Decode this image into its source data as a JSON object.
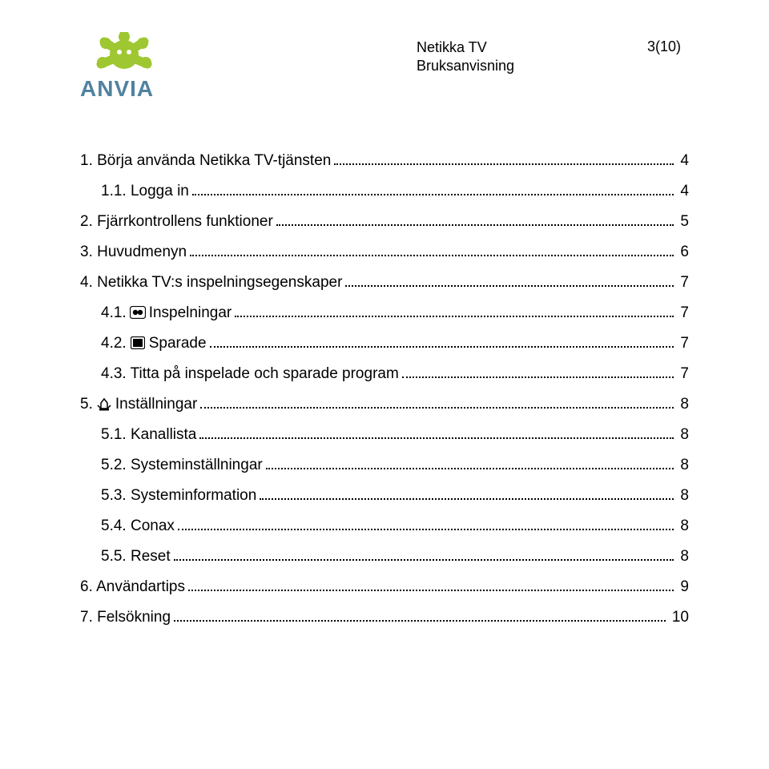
{
  "header": {
    "title1": "Netikka TV",
    "title2": "Bruksanvisning",
    "pageinfo": "3(10)"
  },
  "logo": {
    "brand": "ANVIA",
    "splat_color": "#9ec731",
    "text_color": "#5082a0"
  },
  "toc": {
    "entries": [
      {
        "level": 0,
        "label": "1. Börja använda Netikka TV-tjänsten",
        "page": "4",
        "icon": null
      },
      {
        "level": 1,
        "label": "1.1. Logga in",
        "page": "4",
        "icon": null
      },
      {
        "level": 0,
        "label": "2. Fjärrkontrollens funktioner",
        "page": "5",
        "icon": null
      },
      {
        "level": 0,
        "label": "3. Huvudmenyn",
        "page": "6",
        "icon": null
      },
      {
        "level": 0,
        "label": "4. Netikka TV:s inspelningsegenskaper",
        "page": "7",
        "icon": null
      },
      {
        "level": 1,
        "label_pre": "4.1. ",
        "label_post": " Inspelningar",
        "page": "7",
        "icon": "record"
      },
      {
        "level": 1,
        "label_pre": "4.2. ",
        "label_post": " Sparade",
        "page": "7",
        "icon": "saved"
      },
      {
        "level": 1,
        "label": "4.3. Titta på inspelade och sparade program",
        "page": "7",
        "icon": null
      },
      {
        "level": 0,
        "label_pre": "5. ",
        "label_post": " Inställningar",
        "page": "8",
        "icon": "settings"
      },
      {
        "level": 1,
        "label": "5.1. Kanallista",
        "page": "8",
        "icon": null
      },
      {
        "level": 1,
        "label": "5.2. Systeminställningar",
        "page": "8",
        "icon": null
      },
      {
        "level": 1,
        "label": "5.3. Systeminformation",
        "page": "8",
        "icon": null
      },
      {
        "level": 1,
        "label": "5.4. Conax",
        "page": "8",
        "icon": null
      },
      {
        "level": 1,
        "label": "5.5. Reset",
        "page": "8",
        "icon": null
      },
      {
        "level": 0,
        "label": "6. Användartips",
        "page": "9",
        "icon": null
      },
      {
        "level": 0,
        "label": "7. Felsökning",
        "page": "10",
        "icon": null
      }
    ]
  }
}
